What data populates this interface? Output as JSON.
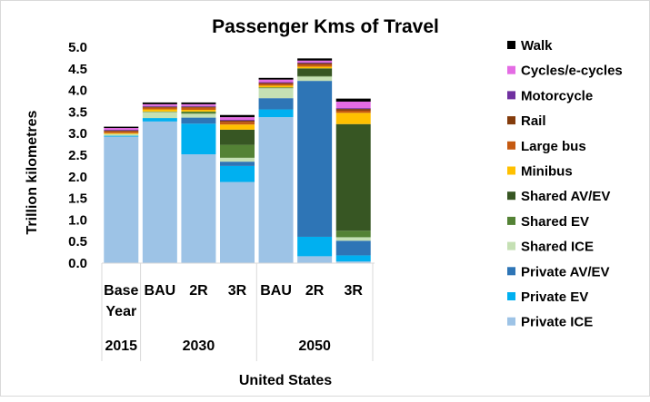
{
  "chart_data": {
    "type": "bar",
    "stacked": true,
    "title": "Passenger Kms of Travel",
    "xlabel": "United States",
    "ylabel": "Trillion kilometres",
    "ylim": [
      0,
      5.0
    ],
    "yticks": [
      0.0,
      0.5,
      1.0,
      1.5,
      2.0,
      2.5,
      3.0,
      3.5,
      4.0,
      4.5,
      5.0
    ],
    "ytick_labels": [
      "0.0",
      "0.5",
      "1.0",
      "1.5",
      "2.0",
      "2.5",
      "3.0",
      "3.5",
      "4.0",
      "4.5",
      "5.0"
    ],
    "categories": [
      "Base Year",
      "BAU",
      "2R",
      "3R",
      "BAU",
      "2R",
      "3R"
    ],
    "category_lines": [
      [
        "Base",
        "Year"
      ],
      [
        "BAU"
      ],
      [
        "2R"
      ],
      [
        "3R"
      ],
      [
        "BAU"
      ],
      [
        "2R"
      ],
      [
        "3R"
      ]
    ],
    "groups": [
      {
        "label": "2015",
        "start": 0,
        "end": 0
      },
      {
        "label": "2030",
        "start": 1,
        "end": 3
      },
      {
        "label": "2050",
        "start": 4,
        "end": 6
      }
    ],
    "legend_position": "right",
    "series": [
      {
        "name": "Private ICE",
        "color": "#9dc3e6",
        "values": [
          2.93,
          3.28,
          2.52,
          1.88,
          3.38,
          0.16,
          0.04
        ]
      },
      {
        "name": "Private EV",
        "color": "#00b0f0",
        "values": [
          0.02,
          0.08,
          0.71,
          0.37,
          0.18,
          0.45,
          0.14
        ]
      },
      {
        "name": "Private AV/EV",
        "color": "#2e75b6",
        "values": [
          0.0,
          0.0,
          0.14,
          0.1,
          0.26,
          3.61,
          0.34
        ]
      },
      {
        "name": "Shared ICE",
        "color": "#c5e0b4",
        "values": [
          0.04,
          0.14,
          0.09,
          0.09,
          0.23,
          0.1,
          0.08
        ]
      },
      {
        "name": "Shared EV",
        "color": "#548235",
        "values": [
          0.0,
          0.01,
          0.05,
          0.3,
          0.02,
          0.01,
          0.15
        ]
      },
      {
        "name": "Shared AV/EV",
        "color": "#375623",
        "values": [
          0.0,
          0.0,
          0.0,
          0.35,
          0.0,
          0.18,
          2.47
        ]
      },
      {
        "name": "Minibus",
        "color": "#ffc000",
        "values": [
          0.02,
          0.05,
          0.04,
          0.12,
          0.04,
          0.04,
          0.26
        ]
      },
      {
        "name": "Large bus",
        "color": "#c55a11",
        "values": [
          0.04,
          0.04,
          0.05,
          0.06,
          0.04,
          0.05,
          0.05
        ]
      },
      {
        "name": "Rail",
        "color": "#843c0c",
        "values": [
          0.02,
          0.02,
          0.02,
          0.03,
          0.02,
          0.03,
          0.04
        ]
      },
      {
        "name": "Motorcycle",
        "color": "#7030a0",
        "values": [
          0.02,
          0.02,
          0.02,
          0.02,
          0.02,
          0.02,
          0.02
        ]
      },
      {
        "name": "Cycles/e-cycles",
        "color": "#e46ce4",
        "values": [
          0.04,
          0.04,
          0.04,
          0.06,
          0.06,
          0.04,
          0.15
        ]
      },
      {
        "name": "Walk",
        "color": "#000000",
        "values": [
          0.03,
          0.04,
          0.04,
          0.05,
          0.04,
          0.05,
          0.07
        ]
      }
    ]
  }
}
